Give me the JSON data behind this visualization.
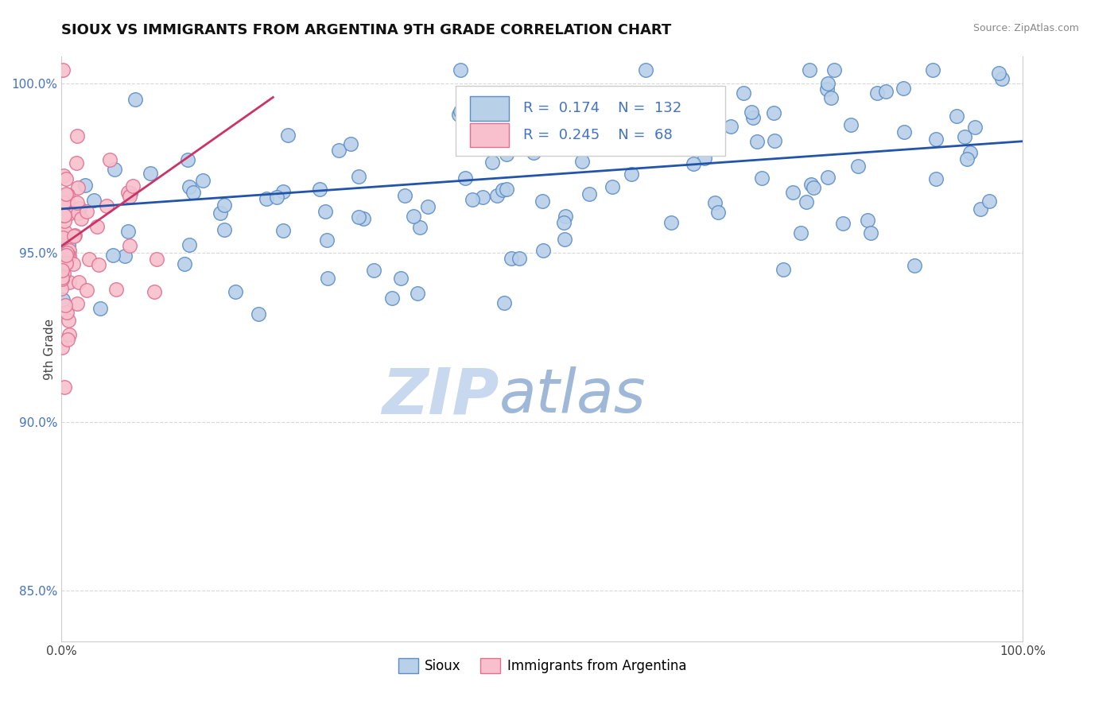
{
  "title": "SIOUX VS IMMIGRANTS FROM ARGENTINA 9TH GRADE CORRELATION CHART",
  "source": "Source: ZipAtlas.com",
  "ylabel": "9th Grade",
  "legend_labels": [
    "Sioux",
    "Immigrants from Argentina"
  ],
  "R_blue": 0.174,
  "N_blue": 132,
  "R_pink": 0.245,
  "N_pink": 68,
  "blue_color": "#b8d0e8",
  "blue_edge_color": "#5b8dc8",
  "blue_line_color": "#2255aa",
  "pink_color": "#f8c0cc",
  "pink_edge_color": "#e07090",
  "pink_line_color": "#cc3366",
  "watermark_zip_color": "#c8d8ee",
  "watermark_atlas_color": "#a0b8d8",
  "background_color": "#ffffff",
  "grid_color": "#d8d8d8",
  "ytick_color": "#4472c4",
  "title_color": "#111111",
  "source_color": "#888888",
  "ylabel_color": "#444444",
  "seed": 7,
  "xlim": [
    0.0,
    1.0
  ],
  "ylim": [
    0.835,
    1.008
  ],
  "yticks": [
    0.85,
    0.9,
    0.95,
    1.0
  ],
  "ytick_labels": [
    "85.0%",
    "90.0%",
    "95.0%",
    "100.0%"
  ],
  "xticks": [
    0.0,
    1.0
  ],
  "xtick_labels": [
    "0.0%",
    "100.0%"
  ],
  "blue_line_x": [
    0.0,
    1.0
  ],
  "blue_line_y": [
    0.963,
    0.983
  ],
  "pink_line_x": [
    0.0,
    0.22
  ],
  "pink_line_y": [
    0.952,
    0.996
  ]
}
